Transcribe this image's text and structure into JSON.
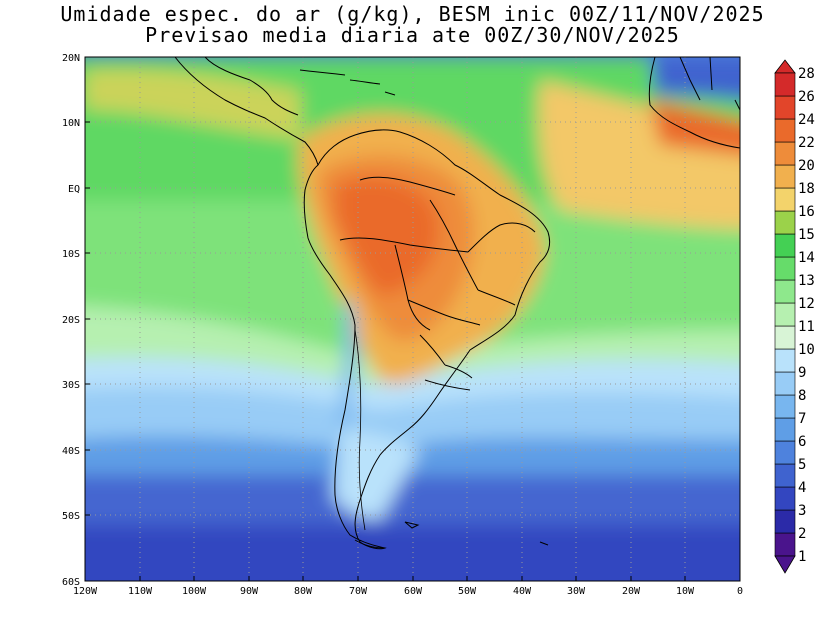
{
  "title_line1": "Umidade espec. do ar (g/kg), BESM inic 00Z/11/NOV/2025",
  "title_line2": "Previsao media diaria ate 00Z/30/NOV/2025",
  "lat_labels": [
    "20N",
    "10N",
    "EQ",
    "10S",
    "20S",
    "30S",
    "40S",
    "50S",
    "60S"
  ],
  "lon_labels": [
    "120W",
    "110W",
    "100W",
    "90W",
    "80W",
    "70W",
    "60W",
    "50W",
    "40W",
    "30W",
    "20W",
    "10W",
    "0"
  ],
  "colorbar": {
    "labels": [
      "1",
      "2",
      "3",
      "4",
      "5",
      "6",
      "7",
      "8",
      "9",
      "10",
      "11",
      "12",
      "13",
      "14",
      "15",
      "16",
      "18",
      "20",
      "22",
      "24",
      "26",
      "28"
    ],
    "colors": [
      "#4a148c",
      "#2b2aa8",
      "#3346c0",
      "#3f63cf",
      "#4e82dd",
      "#5f9ee6",
      "#78b6ef",
      "#98ccf6",
      "#b9e2fb",
      "#d8f4d6",
      "#b6f0b0",
      "#8ee88c",
      "#66dc6a",
      "#44d054",
      "#9bd24a",
      "#f3d36b",
      "#f1b04e",
      "#ee8c3a",
      "#ea6a2b",
      "#e2452a",
      "#d42a2a"
    ]
  },
  "map": {
    "lon_range": [
      -120,
      0
    ],
    "lat_range": [
      -60,
      20
    ],
    "variable": "specific humidity (g/kg)"
  }
}
